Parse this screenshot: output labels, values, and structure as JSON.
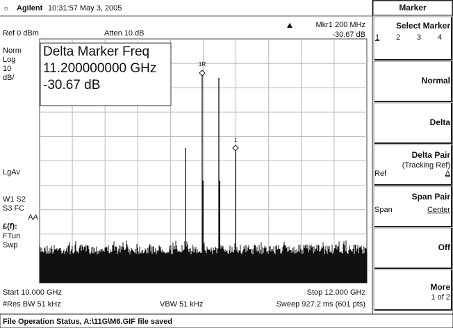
{
  "header": {
    "brand": "Agilent",
    "datetime": "10:31:57  May 3, 2005"
  },
  "display": {
    "ref": "Ref 0 dBm",
    "atten": "Atten 10 dB",
    "marker_readout": "Mkr1  200 MHz",
    "marker_value": "-30.67 dB",
    "side_labels": [
      "Norm",
      "Log",
      "10",
      "dB/",
      "LgAv",
      "W1  S2",
      "S3  FC",
      "AA",
      "£(f):",
      "FTun",
      "Swp"
    ],
    "marker_box": [
      "Delta Marker Freq",
      "11.200000000 GHz",
      "-30.67 dB"
    ],
    "marker_tags": [
      "1R",
      "1"
    ],
    "footer": {
      "start": "Start 10.000 GHz",
      "stop": "Stop 12.000 GHz",
      "rbw": "#Res BW 51 kHz",
      "vbw": "VBW 51 kHz",
      "sweep": "Sweep 927.2 ms (601 pts)"
    }
  },
  "menu": {
    "title": "Marker",
    "keys": [
      {
        "label": "Select Marker",
        "options": [
          "1",
          "2",
          "3",
          "4"
        ]
      },
      {
        "label": "Normal"
      },
      {
        "label": "Delta"
      },
      {
        "label": "Delta Pair",
        "sub": "(Tracking Ref)",
        "options": [
          "Ref",
          "Δ"
        ]
      },
      {
        "label": "Span Pair",
        "options": [
          "Span",
          "Center"
        ]
      },
      {
        "label": "Off"
      },
      {
        "label": "More",
        "sub": "1 of 2"
      }
    ]
  },
  "status": "File Operation Status, A:\\11G\\M6.GIF file saved"
}
